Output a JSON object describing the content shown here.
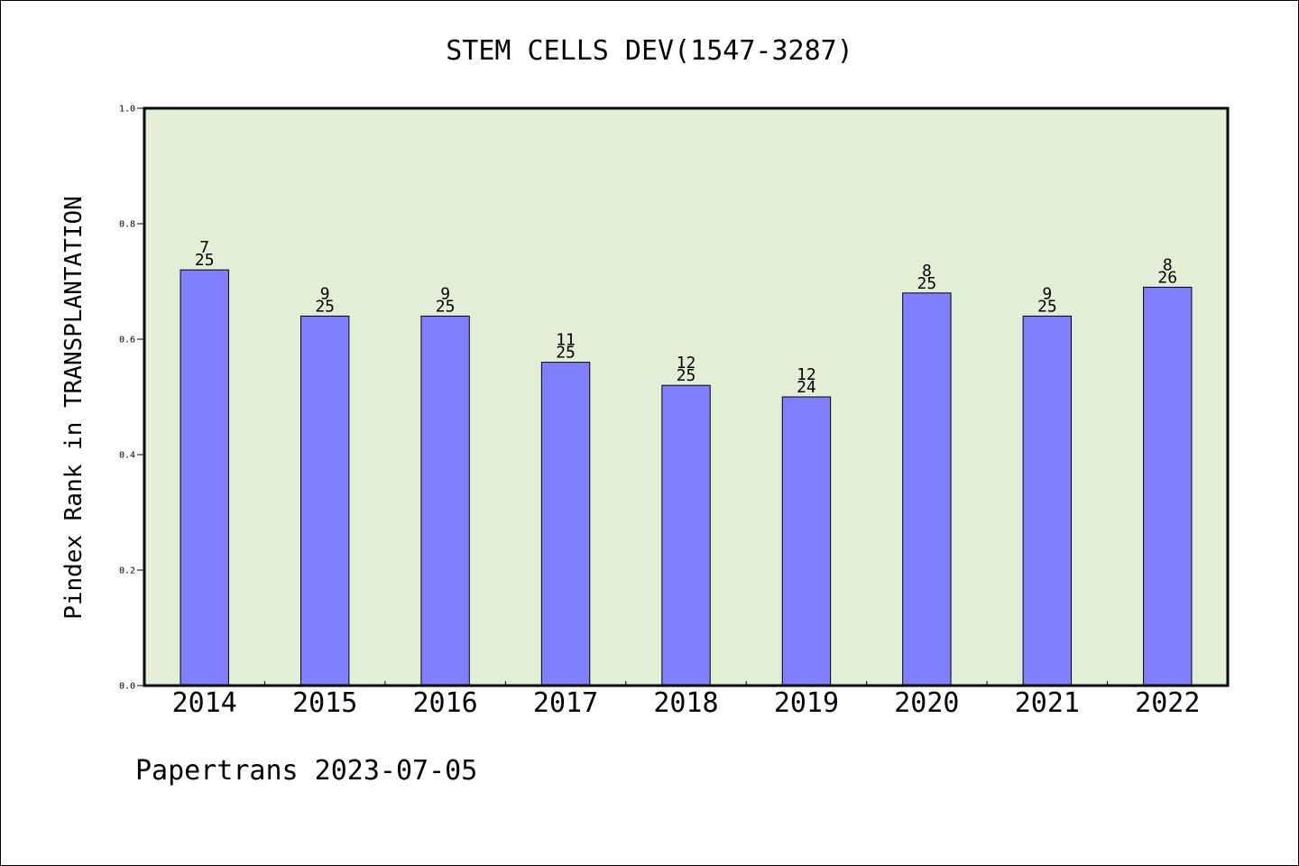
{
  "chart_data": {
    "type": "bar",
    "title": "STEM CELLS DEV(1547-3287)",
    "xlabel": "",
    "ylabel": "Pindex Rank in TRANSPLANTATION",
    "categories": [
      "2014",
      "2015",
      "2016",
      "2017",
      "2018",
      "2019",
      "2020",
      "2021",
      "2022"
    ],
    "values": [
      0.72,
      0.64,
      0.64,
      0.56,
      0.52,
      0.5,
      0.68,
      0.64,
      0.69
    ],
    "label_top": [
      "7",
      "9",
      "9",
      "11",
      "12",
      "12",
      "8",
      "9",
      "8"
    ],
    "label_bottom": [
      "25",
      "25",
      "25",
      "25",
      "25",
      "24",
      "25",
      "25",
      "26"
    ],
    "ylim": [
      0,
      1.0
    ],
    "yticks": [
      "0.0",
      "0.2",
      "0.4",
      "0.6",
      "0.8",
      "1.0"
    ],
    "grid": false,
    "colors": {
      "plot_bg": "#e2efd6",
      "bar": "#8080ff",
      "frame": "#000000"
    }
  },
  "footer": {
    "text": "Papertrans 2023-07-05"
  }
}
